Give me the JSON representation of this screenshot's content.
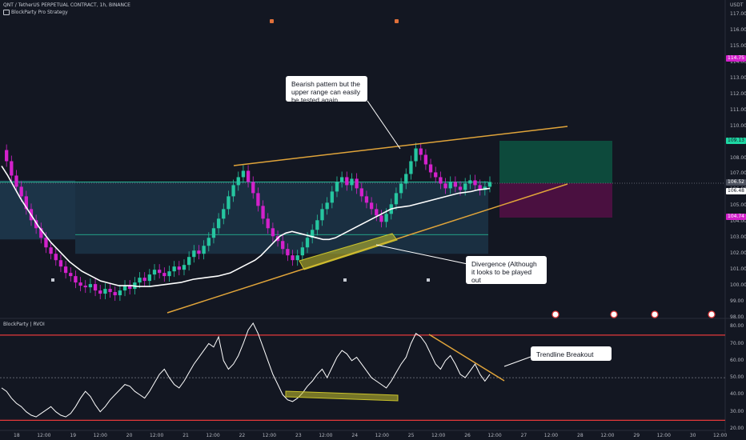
{
  "header": {
    "symbol_line": "QNT / TetherUS PERPETUAL CONTRACT, 1h, BINANCE",
    "strategy_line": "BlockParty Pro Strategy"
  },
  "indicator_label": "BlockParty | RVOI",
  "price_axis": {
    "currency": "USDT",
    "ticks": [
      "117.00",
      "116.00",
      "115.00",
      "114.00",
      "113.00",
      "112.00",
      "111.00",
      "110.00",
      "109.00",
      "108.00",
      "107.00",
      "106.00",
      "105.00",
      "104.00",
      "103.00",
      "102.00",
      "101.00",
      "100.00",
      "99.00",
      "98.00"
    ],
    "badges": [
      {
        "text": "114.75",
        "bg": "#d321cb",
        "fg": "#ffffff"
      },
      {
        "text": "109.13",
        "bg": "#1dd7a3",
        "fg": "#131722"
      },
      {
        "text": "106.52",
        "bg": "#4a4f5c",
        "fg": "#ffffff"
      },
      {
        "text": "106.48",
        "bg": "#ffffff",
        "fg": "#131722"
      },
      {
        "text": "104.74",
        "bg": "#d321cb",
        "fg": "#ffffff"
      }
    ]
  },
  "osc_axis": {
    "ticks": [
      "80.00",
      "70.00",
      "60.00",
      "50.00",
      "40.00",
      "30.00",
      "20.00"
    ]
  },
  "time_axis": {
    "ticks": [
      "18",
      "12:00",
      "19",
      "12:00",
      "20",
      "12:00",
      "21",
      "12:00",
      "22",
      "12:00",
      "23",
      "12:00",
      "24",
      "12:00",
      "25",
      "12:00",
      "26",
      "12:00",
      "27",
      "12:00",
      "28",
      "12:00",
      "29",
      "12:00",
      "30",
      "12:00"
    ]
  },
  "annotations": {
    "bearish": "Bearish pattern but the upper range can easily be tested again",
    "divergence": "Divergence (Although it looks to be played out",
    "trendline": "Trendline Breakout"
  },
  "colors": {
    "background": "#131722",
    "candle_up": "#26c6a0",
    "candle_down": "#d321cb",
    "trendline": "#e0a43a",
    "zone_fill": "#1e3a4f",
    "target_zone": "#0d4a3c",
    "stop_zone": "#4a1040",
    "level_line": "#e5393a"
  },
  "chart_data": {
    "type": "candlestick",
    "ylim": [
      98,
      117.5
    ],
    "osc_ylim": [
      20,
      82
    ],
    "osc_levels": [
      75,
      25
    ],
    "osc_mid": 50,
    "price_series": [
      108.5,
      107.8,
      106.9,
      106.2,
      105.6,
      104.8,
      104.1,
      103.6,
      103.0,
      102.4,
      102.0,
      101.6,
      101.2,
      100.8,
      100.6,
      100.2,
      100.0,
      99.9,
      100.1,
      99.7,
      99.5,
      99.8,
      99.6,
      99.4,
      99.7,
      100.0,
      99.8,
      100.2,
      100.5,
      100.3,
      100.7,
      101.0,
      100.8,
      100.6,
      100.9,
      101.2,
      101.0,
      101.3,
      101.8,
      102.2,
      102.0,
      102.5,
      103.0,
      103.6,
      104.2,
      104.8,
      105.6,
      106.3,
      106.8,
      107.2,
      106.5,
      105.8,
      105.0,
      104.2,
      103.6,
      103.1,
      102.8,
      102.3,
      101.9,
      101.6,
      101.9,
      102.4,
      103.0,
      103.5,
      104.1,
      104.8,
      105.2,
      105.9,
      106.5,
      106.8,
      106.3,
      106.7,
      106.1,
      105.6,
      105.2,
      104.8,
      104.4,
      104.0,
      104.5,
      105.1,
      105.8,
      106.4,
      107.0,
      107.8,
      108.6,
      108.2,
      107.6,
      107.1,
      106.8,
      106.4,
      106.1,
      106.5,
      106.2,
      106.0,
      106.4,
      106.6,
      106.3,
      106.0,
      106.2,
      106.5
    ],
    "ma_series": [
      107.5,
      106.9,
      106.2,
      105.5,
      104.9,
      104.3,
      103.7,
      103.2,
      102.7,
      102.3,
      101.9,
      101.5,
      101.2,
      100.9,
      100.7,
      100.5,
      100.3,
      100.2,
      100.1,
      100.0,
      100.0,
      100.0,
      99.95,
      99.95,
      99.95,
      100.0,
      100.05,
      100.1,
      100.15,
      100.2,
      100.3,
      100.4,
      100.45,
      100.5,
      100.55,
      100.6,
      100.7,
      100.8,
      101.0,
      101.2,
      101.4,
      101.6,
      101.9,
      102.3,
      102.7,
      103.1,
      103.3,
      103.4,
      103.3,
      103.2,
      103.1,
      103.0,
      102.9,
      102.9,
      103.0,
      103.2,
      103.4,
      103.6,
      103.8,
      104.0,
      104.2,
      104.4,
      104.6,
      104.8,
      104.9,
      104.95,
      105.0,
      105.1,
      105.2,
      105.3,
      105.4,
      105.5,
      105.6,
      105.7,
      105.8,
      105.85,
      105.9,
      106.0,
      106.05,
      106.1
    ],
    "volume_profile_band": [
      103.0,
      106.6
    ],
    "rvoi_series": [
      44,
      42,
      38,
      35,
      33,
      30,
      28,
      27,
      29,
      31,
      33,
      30,
      28,
      27,
      29,
      33,
      38,
      42,
      39,
      34,
      30,
      33,
      37,
      40,
      43,
      46,
      45,
      42,
      40,
      38,
      42,
      47,
      52,
      55,
      50,
      46,
      44,
      48,
      53,
      58,
      62,
      66,
      70,
      68,
      74,
      60,
      55,
      58,
      63,
      70,
      78,
      82,
      76,
      68,
      60,
      52,
      46,
      40,
      37,
      36,
      38,
      41,
      45,
      48,
      52,
      55,
      50,
      56,
      62,
      66,
      64,
      60,
      62,
      58,
      54,
      50,
      48,
      46,
      44,
      48,
      53,
      58,
      62,
      70,
      76,
      74,
      70,
      64,
      58,
      55,
      60,
      63,
      58,
      52,
      50,
      54,
      58,
      52,
      48,
      52
    ]
  }
}
